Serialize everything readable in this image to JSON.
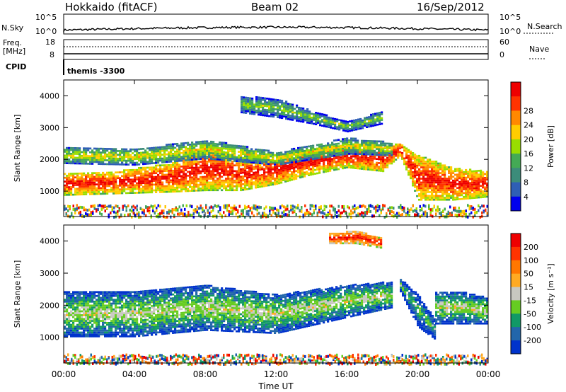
{
  "header": {
    "radar": "Hokkaido (fitACF)",
    "beam": "Beam 02",
    "date": "16/Sep/2012"
  },
  "top_panels": {
    "nsky_label": "N.Sky",
    "nsky_ticks": [
      "10^5",
      "10^0"
    ],
    "nsearch_label": "N.Search",
    "nsearch_ticks": [
      "10^5",
      "10^0"
    ],
    "freq_label_1": "Freq.",
    "freq_label_2": "[MHz]",
    "freq_ticks": [
      "18",
      "8"
    ],
    "nave_label": "Nave",
    "nave_ticks": [
      "60",
      "0"
    ],
    "cpid_label": "CPID",
    "cpid_value": "themis -3300"
  },
  "chart_data": [
    {
      "type": "heatmap",
      "name": "power-panel",
      "ylabel": "Slant Range [km]",
      "ylim": [
        200,
        4500
      ],
      "yticks": [
        1000,
        2000,
        3000,
        4000
      ],
      "xlim": [
        0,
        24
      ],
      "colorbar_label": "Power [dB]",
      "colorbar_ticks": [
        "4",
        "8",
        "12",
        "16",
        "20",
        "24",
        "28"
      ],
      "colors": [
        "#0000ee",
        "#2f5fb5",
        "#3c8c7a",
        "#44aa55",
        "#99dd00",
        "#ffcc00",
        "#ff8800",
        "#ff3300",
        "#ee0000"
      ],
      "bands": [
        {
          "t": [
            0,
            3,
            6,
            8,
            10,
            12,
            14,
            16,
            18,
            19,
            20,
            22,
            24
          ],
          "r": [
            1200,
            1250,
            1400,
            1700,
            1500,
            1650,
            1900,
            2100,
            2000,
            2300,
            1400,
            1200,
            1200
          ],
          "w": [
            350,
            350,
            450,
            700,
            500,
            450,
            400,
            380,
            400,
            200,
            700,
            500,
            400
          ],
          "level": 8
        },
        {
          "t": [
            0,
            4,
            8,
            12,
            16,
            18.5
          ],
          "r": [
            2100,
            2050,
            2300,
            2000,
            2400,
            2300
          ],
          "w": [
            250,
            250,
            300,
            200,
            250,
            200
          ],
          "level": 5
        },
        {
          "t": [
            10,
            12,
            14,
            16,
            18
          ],
          "r": [
            3700,
            3600,
            3300,
            3000,
            3300
          ],
          "w": [
            250,
            300,
            200,
            150,
            200
          ],
          "level": 4
        }
      ]
    },
    {
      "type": "heatmap",
      "name": "velocity-panel",
      "ylabel": "Slant Range [km]",
      "ylim": [
        200,
        4500
      ],
      "yticks": [
        1000,
        2000,
        3000,
        4000
      ],
      "xlim": [
        0,
        24
      ],
      "xticks": [
        "00:00",
        "04:00",
        "08:00",
        "12:00",
        "16:00",
        "20:00",
        "00:00"
      ],
      "xlabel": "Time UT",
      "colorbar_label": "Velocity [m s⁻¹]",
      "colorbar_ticks": [
        "200",
        "100",
        "50",
        "15",
        "-15",
        "-50",
        "-100",
        "-200"
      ],
      "colors": [
        "#0033cc",
        "#2266aa",
        "#119966",
        "#66cc22",
        "#c8c8c0",
        "#ffaa22",
        "#ff7700",
        "#ff3300",
        "#ee0000"
      ],
      "bands": [
        {
          "t": [
            0,
            4,
            8,
            12,
            16,
            18.5
          ],
          "r": [
            1700,
            1700,
            1900,
            1700,
            2100,
            2300
          ],
          "w": [
            700,
            700,
            700,
            600,
            500,
            400
          ],
          "level": 4
        },
        {
          "t": [
            19,
            20,
            21
          ],
          "r": [
            2600,
            1800,
            1200
          ],
          "w": [
            200,
            500,
            300
          ],
          "level": 3
        },
        {
          "t": [
            21,
            22.5,
            24
          ],
          "r": [
            1900,
            1900,
            1800
          ],
          "w": [
            500,
            500,
            400
          ],
          "level": 4
        },
        {
          "t": [
            15,
            16.5,
            18
          ],
          "r": [
            4050,
            4100,
            3900
          ],
          "w": [
            150,
            200,
            150
          ],
          "level": 8
        }
      ]
    }
  ]
}
